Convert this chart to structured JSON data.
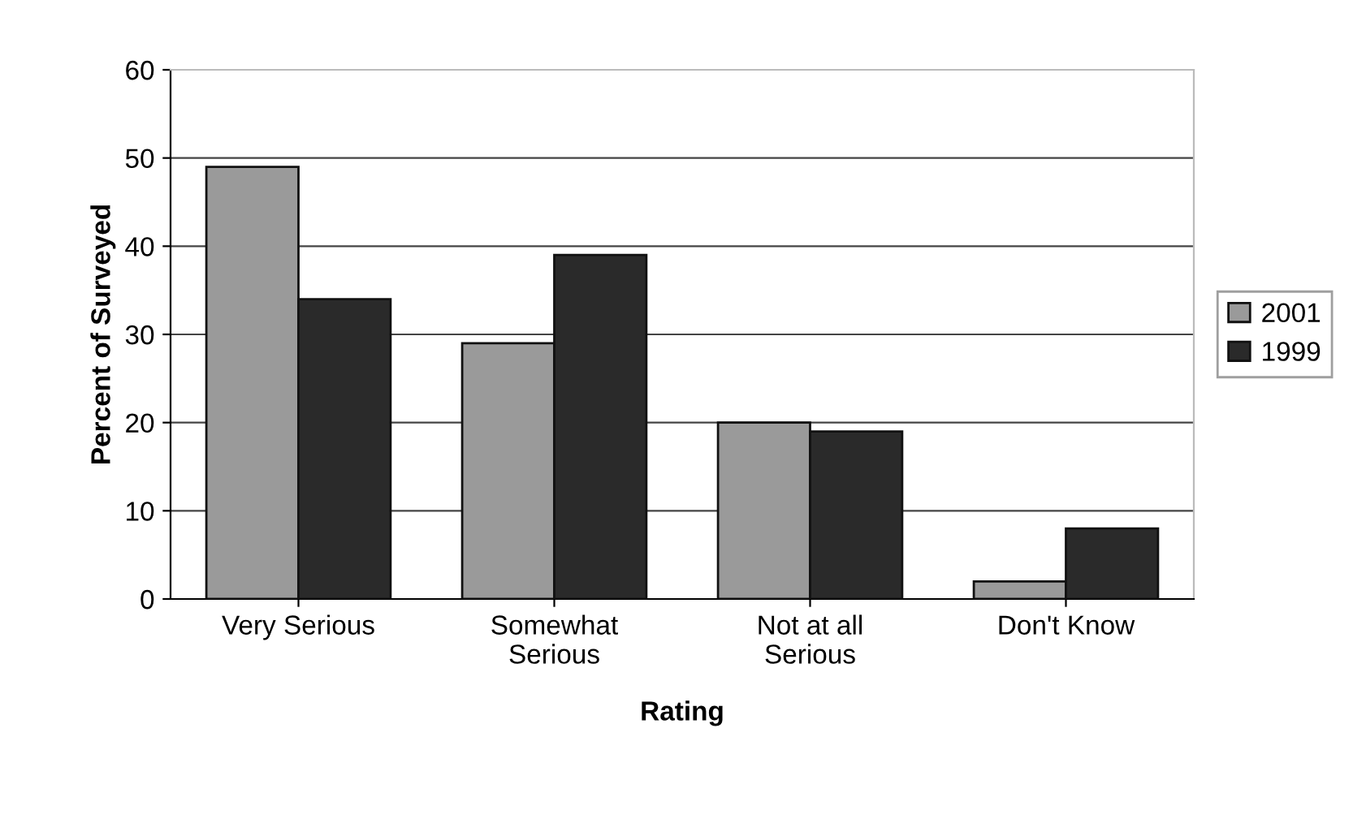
{
  "chart_data": {
    "type": "bar",
    "xlabel": "Rating",
    "ylabel": "Percent of Surveyed",
    "categories": [
      "Very Serious",
      "Somewhat\nSerious",
      "Not at all\nSerious",
      "Don't Know"
    ],
    "series": [
      {
        "name": "2001",
        "color": "#9a9a9a",
        "values": [
          49,
          29,
          20,
          2
        ]
      },
      {
        "name": "1999",
        "color": "#2a2a2a",
        "values": [
          34,
          39,
          19,
          8
        ]
      }
    ],
    "ylim": [
      0,
      60
    ],
    "yticks": [
      0,
      10,
      20,
      30,
      40,
      50,
      60
    ],
    "grid": "y",
    "legend": "right"
  }
}
